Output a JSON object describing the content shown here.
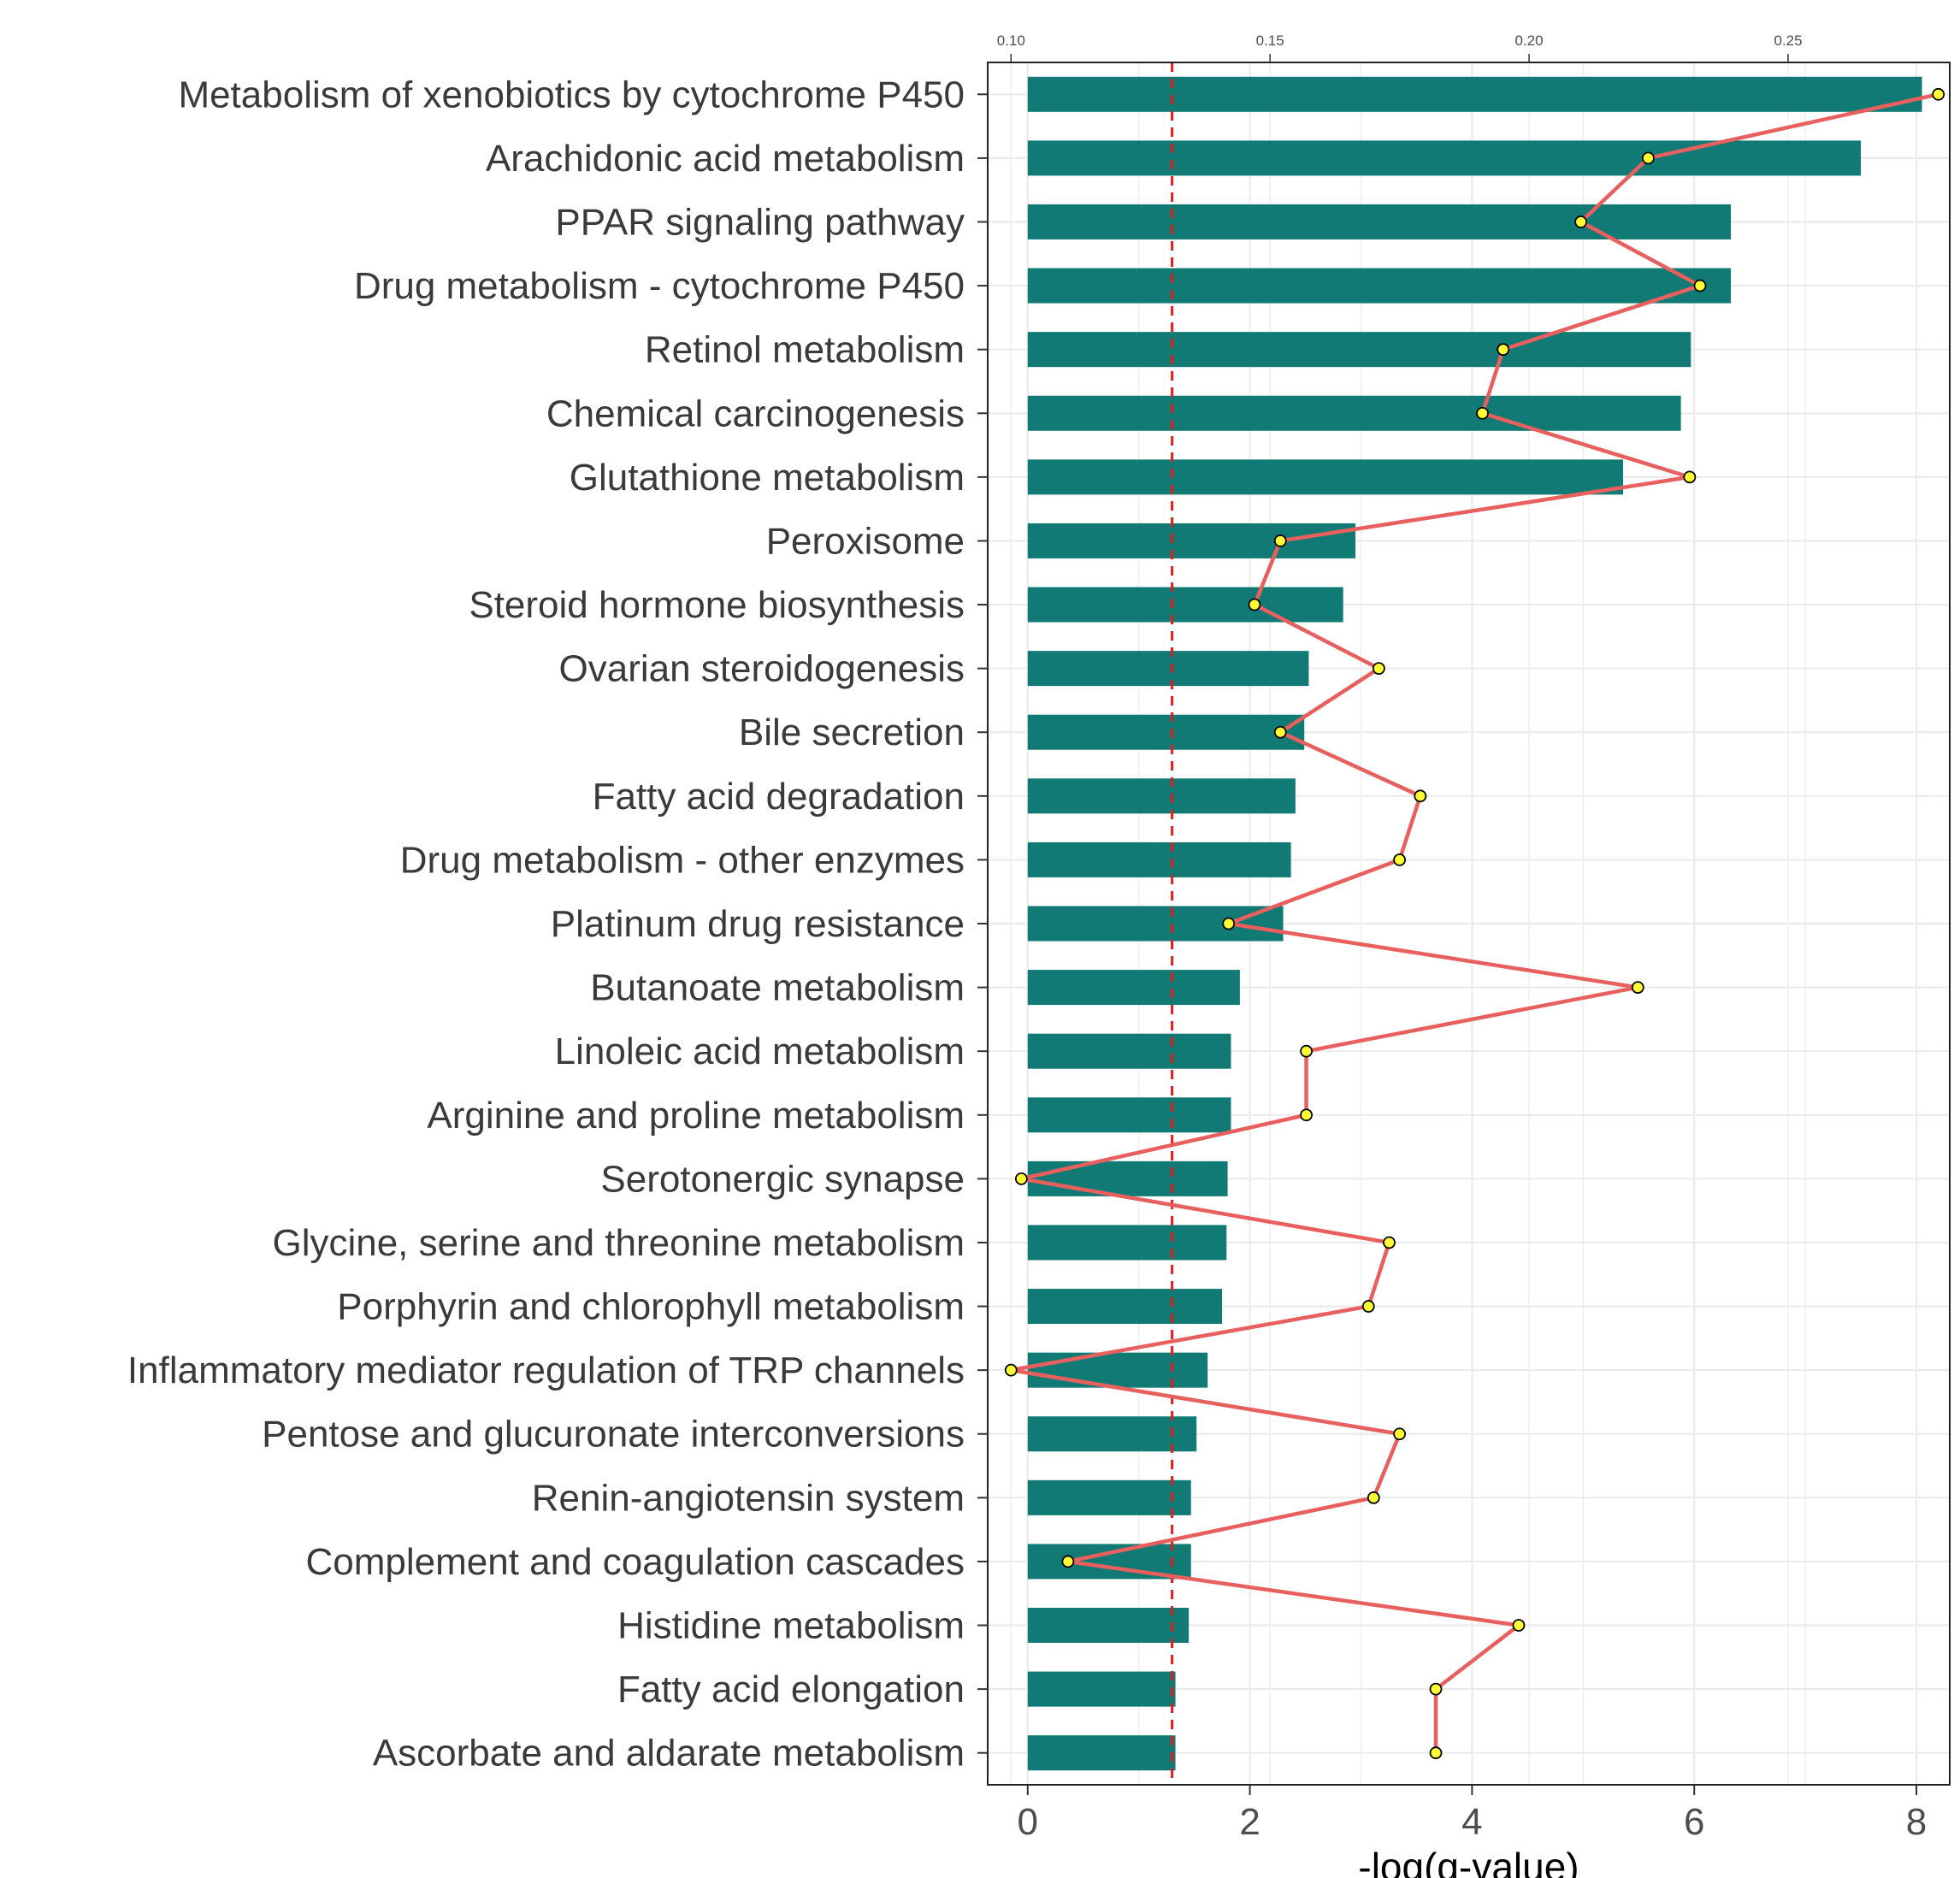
{
  "chart_data": {
    "type": "bar",
    "orientation": "horizontal",
    "categories": [
      "Metabolism of xenobiotics by cytochrome P450",
      "Arachidonic acid metabolism",
      "PPAR signaling pathway",
      "Drug metabolism - cytochrome P450",
      "Retinol metabolism",
      "Chemical carcinogenesis",
      "Glutathione metabolism",
      "Peroxisome",
      "Steroid hormone biosynthesis",
      "Ovarian steroidogenesis",
      "Bile secretion",
      "Fatty acid degradation",
      "Drug metabolism - other enzymes",
      "Platinum drug resistance",
      "Butanoate metabolism",
      "Linoleic acid metabolism",
      "Arginine and proline metabolism",
      "Serotonergic synapse",
      "Glycine, serine and threonine metabolism",
      "Porphyrin and chlorophyll metabolism",
      "Inflammatory mediator regulation of TRP channels",
      "Pentose and glucuronate interconversions",
      "Renin-angiotensin system",
      "Complement and coagulation cascades",
      "Histidine metabolism",
      "Fatty acid elongation",
      "Ascorbate and aldarate metabolism"
    ],
    "series": [
      {
        "type": "bar",
        "axis": "bottom",
        "values": [
          8.05,
          7.5,
          6.33,
          6.33,
          5.97,
          5.88,
          5.36,
          2.95,
          2.84,
          2.53,
          2.49,
          2.41,
          2.37,
          2.3,
          1.91,
          1.83,
          1.83,
          1.8,
          1.79,
          1.75,
          1.62,
          1.52,
          1.47,
          1.47,
          1.45,
          1.33,
          1.33
        ],
        "color": "#127a75"
      },
      {
        "type": "line",
        "axis": "top",
        "values": [
          0.279,
          0.223,
          0.21,
          0.233,
          0.195,
          0.191,
          0.231,
          0.152,
          0.147,
          0.171,
          0.152,
          0.179,
          0.175,
          0.142,
          0.221,
          0.157,
          0.157,
          0.102,
          0.173,
          0.169,
          0.1,
          0.175,
          0.17,
          0.111,
          0.198,
          0.182,
          0.182
        ],
        "color": "#e8605e",
        "marker_color": "#ffff33"
      }
    ],
    "threshold_line": {
      "value": 1.3,
      "axis": "bottom",
      "color": "#e41a1c",
      "style": "dashed"
    },
    "xlabel": "-log(q-value)",
    "xlim": [
      -0.36,
      8.3
    ],
    "xticks": [
      "0",
      "2",
      "4",
      "6",
      "8"
    ],
    "top_xlim": [
      0.0955,
      0.2812
    ],
    "top_xticks": [
      "0.10",
      "0.15",
      "0.20",
      "0.25"
    ],
    "grid": true
  }
}
